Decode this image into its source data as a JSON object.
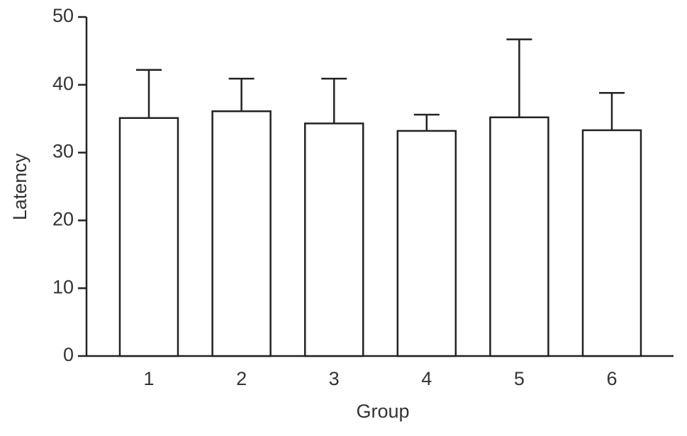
{
  "chart_data": {
    "type": "bar",
    "xlabel": "Group",
    "ylabel": "Latency",
    "categories": [
      "1",
      "2",
      "3",
      "4",
      "5",
      "6"
    ],
    "values": [
      35.1,
      36.1,
      34.3,
      33.2,
      35.2,
      33.3
    ],
    "errors": [
      7.1,
      4.8,
      6.6,
      2.4,
      11.5,
      5.5
    ],
    "color": "#ffffff",
    "ylim": [
      0,
      50
    ],
    "yticks": [
      0,
      10,
      20,
      30,
      40,
      50
    ],
    "grid": false
  }
}
